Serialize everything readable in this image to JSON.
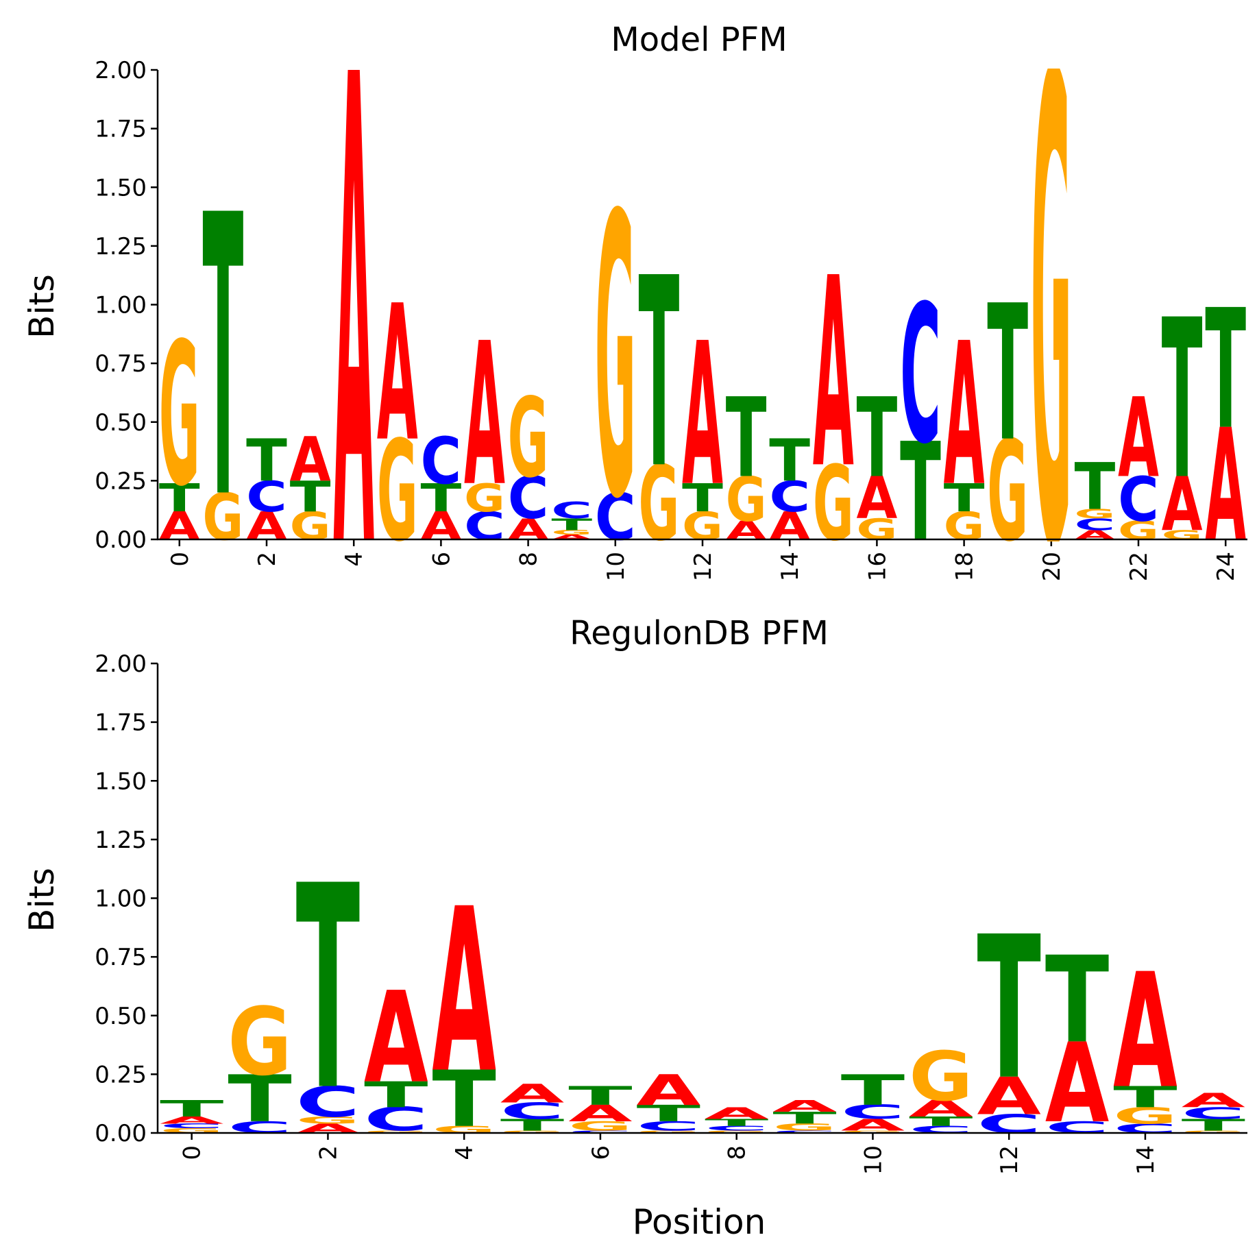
{
  "colors": {
    "A": "#ff0000",
    "C": "#0000ff",
    "G": "#ffa500",
    "T": "#008000"
  },
  "chart_data": [
    {
      "type": "sequence-logo",
      "title": "Model PFM",
      "xlabel": "",
      "ylabel": "Bits",
      "ylim": [
        0,
        2
      ],
      "yticks": [
        "0.00",
        "0.25",
        "0.50",
        "0.75",
        "1.00",
        "1.25",
        "1.50",
        "1.75",
        "2.00"
      ],
      "xticks": [
        0,
        2,
        4,
        6,
        8,
        10,
        12,
        14,
        16,
        18,
        20,
        22,
        24
      ],
      "positions": [
        [
          [
            "A",
            0.12
          ],
          [
            "T",
            0.12
          ],
          [
            "G",
            0.61
          ]
        ],
        [
          [
            "G",
            0.2
          ],
          [
            "T",
            1.2
          ]
        ],
        [
          [
            "A",
            0.12
          ],
          [
            "C",
            0.13
          ],
          [
            "T",
            0.18
          ]
        ],
        [
          [
            "G",
            0.12
          ],
          [
            "T",
            0.13
          ],
          [
            "A",
            0.19
          ]
        ],
        [
          [
            "A",
            2.0
          ]
        ],
        [
          [
            "G",
            0.43
          ],
          [
            "A",
            0.58
          ]
        ],
        [
          [
            "A",
            0.12
          ],
          [
            "T",
            0.12
          ],
          [
            "C",
            0.2
          ]
        ],
        [
          [
            "C",
            0.12
          ],
          [
            "G",
            0.12
          ],
          [
            "A",
            0.61
          ]
        ],
        [
          [
            "A",
            0.09
          ],
          [
            "C",
            0.18
          ],
          [
            "G",
            0.34
          ]
        ],
        [
          [
            "A",
            0.02
          ],
          [
            "G",
            0.02
          ],
          [
            "T",
            0.05
          ],
          [
            "C",
            0.07
          ]
        ],
        [
          [
            "C",
            0.2
          ],
          [
            "G",
            1.2
          ]
        ],
        [
          [
            "G",
            0.32
          ],
          [
            "T",
            0.81
          ]
        ],
        [
          [
            "G",
            0.12
          ],
          [
            "T",
            0.12
          ],
          [
            "A",
            0.61
          ]
        ],
        [
          [
            "A",
            0.08
          ],
          [
            "G",
            0.19
          ],
          [
            "T",
            0.34
          ]
        ],
        [
          [
            "A",
            0.12
          ],
          [
            "C",
            0.13
          ],
          [
            "T",
            0.18
          ]
        ],
        [
          [
            "G",
            0.32
          ],
          [
            "A",
            0.81
          ]
        ],
        [
          [
            "G",
            0.09
          ],
          [
            "A",
            0.18
          ],
          [
            "T",
            0.34
          ]
        ],
        [
          [
            "T",
            0.42
          ],
          [
            "C",
            0.59
          ]
        ],
        [
          [
            "G",
            0.12
          ],
          [
            "T",
            0.12
          ],
          [
            "A",
            0.61
          ]
        ],
        [
          [
            "G",
            0.43
          ],
          [
            "T",
            0.58
          ]
        ],
        [
          [
            "G",
            2.0
          ]
        ],
        [
          [
            "A",
            0.04
          ],
          [
            "C",
            0.05
          ],
          [
            "G",
            0.04
          ],
          [
            "T",
            0.2
          ]
        ],
        [
          [
            "G",
            0.08
          ],
          [
            "C",
            0.19
          ],
          [
            "A",
            0.34
          ]
        ],
        [
          [
            "G",
            0.04
          ],
          [
            "A",
            0.23
          ],
          [
            "T",
            0.68
          ]
        ],
        [
          [
            "A",
            0.48
          ],
          [
            "T",
            0.51
          ]
        ]
      ]
    },
    {
      "type": "sequence-logo",
      "title": "RegulonDB PFM",
      "xlabel": "Position",
      "ylabel": "Bits",
      "ylim": [
        0,
        2
      ],
      "yticks": [
        "0.00",
        "0.25",
        "0.50",
        "0.75",
        "1.00",
        "1.25",
        "1.50",
        "1.75",
        "2.00"
      ],
      "xticks": [
        0,
        2,
        4,
        6,
        8,
        10,
        12,
        14
      ],
      "positions": [
        [
          [
            "G",
            0.02
          ],
          [
            "C",
            0.02
          ],
          [
            "A",
            0.03
          ],
          [
            "T",
            0.07
          ]
        ],
        [
          [
            "C",
            0.05
          ],
          [
            "T",
            0.2
          ],
          [
            "G",
            0.29
          ]
        ],
        [
          [
            "A",
            0.04
          ],
          [
            "G",
            0.03
          ],
          [
            "C",
            0.13
          ],
          [
            "T",
            0.87
          ]
        ],
        [
          [
            "G",
            0.01
          ],
          [
            "C",
            0.1
          ],
          [
            "T",
            0.11
          ],
          [
            "A",
            0.39
          ]
        ],
        [
          [
            "G",
            0.03
          ],
          [
            "T",
            0.24
          ],
          [
            "A",
            0.7
          ]
        ],
        [
          [
            "G",
            0.01
          ],
          [
            "T",
            0.05
          ],
          [
            "C",
            0.07
          ],
          [
            "A",
            0.08
          ]
        ],
        [
          [
            "C",
            0.01
          ],
          [
            "G",
            0.04
          ],
          [
            "A",
            0.07
          ],
          [
            "T",
            0.08
          ]
        ],
        [
          [
            "G",
            0.01
          ],
          [
            "C",
            0.04
          ],
          [
            "T",
            0.07
          ],
          [
            "A",
            0.13
          ]
        ],
        [
          [
            "G",
            0.01
          ],
          [
            "C",
            0.02
          ],
          [
            "T",
            0.03
          ],
          [
            "A",
            0.05
          ]
        ],
        [
          [
            "C",
            0.01
          ],
          [
            "G",
            0.03
          ],
          [
            "T",
            0.05
          ],
          [
            "A",
            0.05
          ]
        ],
        [
          [
            "G",
            0.01
          ],
          [
            "A",
            0.05
          ],
          [
            "C",
            0.06
          ],
          [
            "T",
            0.13
          ]
        ],
        [
          [
            "C",
            0.03
          ],
          [
            "T",
            0.04
          ],
          [
            "A",
            0.07
          ],
          [
            "G",
            0.21
          ]
        ],
        [
          [
            "C",
            0.08
          ],
          [
            "A",
            0.16
          ],
          [
            "T",
            0.61
          ]
        ],
        [
          [
            "C",
            0.05
          ],
          [
            "A",
            0.34
          ],
          [
            "T",
            0.37
          ]
        ],
        [
          [
            "C",
            0.04
          ],
          [
            "G",
            0.07
          ],
          [
            "T",
            0.09
          ],
          [
            "A",
            0.49
          ]
        ],
        [
          [
            "G",
            0.01
          ],
          [
            "T",
            0.05
          ],
          [
            "C",
            0.05
          ],
          [
            "A",
            0.06
          ]
        ]
      ]
    }
  ]
}
